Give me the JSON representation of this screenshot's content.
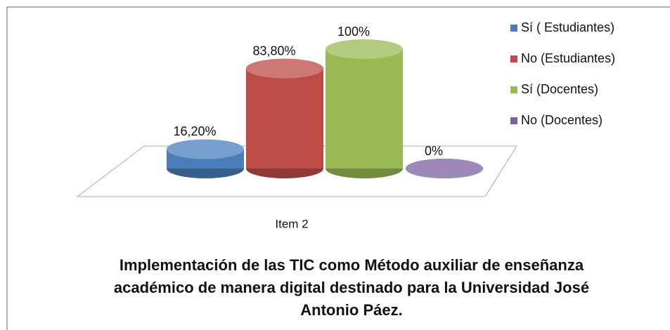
{
  "chart_data": {
    "type": "bar3d",
    "title": "Implementación de las TIC como Método auxiliar de enseñanza académico de manera digital destinado para la Universidad José Antonio Páez.",
    "categories": [
      "Item 2"
    ],
    "series": [
      {
        "name": "Sí ( Estudiantes)",
        "color": "#4a7ebb",
        "values": [
          16.2
        ],
        "value_labels": [
          "16,20%"
        ]
      },
      {
        "name": "No (Estudiantes)",
        "color": "#be4b48",
        "values": [
          83.8
        ],
        "value_labels": [
          "83,80%"
        ]
      },
      {
        "name": "Sí (Docentes)",
        "color": "#98b954",
        "values": [
          100
        ],
        "value_labels": [
          "100%"
        ]
      },
      {
        "name": "No (Docentes)",
        "color": "#7d60a0",
        "values": [
          0
        ],
        "value_labels": [
          "0%"
        ]
      }
    ],
    "ylim": [
      0,
      100
    ],
    "legend": "right"
  }
}
